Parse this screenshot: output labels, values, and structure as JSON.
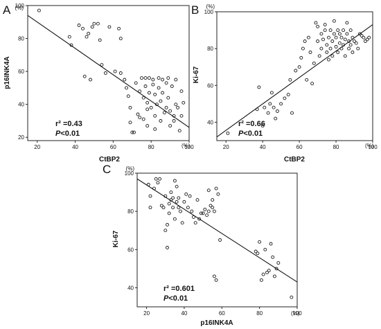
{
  "chart_data": [
    {
      "type": "scatter",
      "panel": "A",
      "xlabel": "CtBP2",
      "ylabel": "p16INK4A",
      "x_unit": "(%)",
      "y_unit": "(%)",
      "xlim": [
        15,
        100
      ],
      "ylim": [
        18,
        100
      ],
      "x_ticks": [
        "20",
        "40",
        "60",
        "80",
        "100"
      ],
      "y_ticks": [
        "20",
        "40",
        "60",
        "80",
        "100"
      ],
      "stat_r2": "r² =0.43",
      "stat_p_italic": "P",
      "stat_p_rest": "<0.01",
      "fit_line": [
        [
          15,
          94
        ],
        [
          100,
          26
        ]
      ],
      "points": [
        [
          21,
          97
        ],
        [
          37,
          81
        ],
        [
          38,
          76
        ],
        [
          45,
          57
        ],
        [
          42,
          88
        ],
        [
          44,
          86
        ],
        [
          46,
          81
        ],
        [
          47,
          83
        ],
        [
          48,
          55
        ],
        [
          49,
          87
        ],
        [
          50,
          89
        ],
        [
          52,
          89
        ],
        [
          53,
          79
        ],
        [
          54,
          64
        ],
        [
          56,
          59
        ],
        [
          58,
          87
        ],
        [
          61,
          60
        ],
        [
          64,
          59
        ],
        [
          63,
          86
        ],
        [
          64,
          80
        ],
        [
          66,
          55
        ],
        [
          67,
          50
        ],
        [
          68,
          45
        ],
        [
          69,
          38
        ],
        [
          69,
          29
        ],
        [
          70,
          23
        ],
        [
          71,
          23
        ],
        [
          72,
          53
        ],
        [
          73,
          34
        ],
        [
          74,
          32
        ],
        [
          74,
          48
        ],
        [
          75,
          56
        ],
        [
          76,
          31
        ],
        [
          76,
          44
        ],
        [
          77,
          51
        ],
        [
          77,
          56
        ],
        [
          78,
          27
        ],
        [
          78,
          41
        ],
        [
          78,
          37
        ],
        [
          79,
          47
        ],
        [
          79,
          56
        ],
        [
          80,
          38
        ],
        [
          81,
          52
        ],
        [
          81,
          55
        ],
        [
          82,
          25
        ],
        [
          82,
          33
        ],
        [
          82,
          46
        ],
        [
          83,
          40
        ],
        [
          84,
          56
        ],
        [
          84,
          50
        ],
        [
          85,
          30
        ],
        [
          85,
          42
        ],
        [
          86,
          55
        ],
        [
          86,
          47
        ],
        [
          87,
          35
        ],
        [
          88,
          53
        ],
        [
          88,
          38
        ],
        [
          89,
          44
        ],
        [
          89,
          56
        ],
        [
          90,
          36
        ],
        [
          90,
          27
        ],
        [
          91,
          51
        ],
        [
          92,
          33
        ],
        [
          92,
          30
        ],
        [
          93,
          40
        ],
        [
          93,
          55
        ],
        [
          94,
          38
        ],
        [
          95,
          24
        ],
        [
          96,
          33
        ],
        [
          96,
          48
        ],
        [
          97,
          41
        ]
      ]
    },
    {
      "type": "scatter",
      "panel": "B",
      "xlabel": "CtBP2",
      "ylabel": "Ki-67",
      "x_unit": "(%)",
      "y_unit": "(%)",
      "xlim": [
        15,
        100
      ],
      "ylim": [
        30,
        100
      ],
      "x_ticks": [
        "20",
        "40",
        "60",
        "80",
        "100"
      ],
      "y_ticks": [
        "40",
        "60",
        "80",
        "100"
      ],
      "stat_r2": "r² =0.66",
      "stat_p_italic": "P",
      "stat_p_rest": "<0.01",
      "fit_line": [
        [
          15,
          32
        ],
        [
          100,
          93
        ]
      ],
      "points": [
        [
          21,
          34
        ],
        [
          37,
          47
        ],
        [
          38,
          59
        ],
        [
          40,
          38
        ],
        [
          41,
          48
        ],
        [
          43,
          45
        ],
        [
          44,
          50
        ],
        [
          45,
          56
        ],
        [
          46,
          48
        ],
        [
          47,
          42
        ],
        [
          48,
          46
        ],
        [
          50,
          50
        ],
        [
          52,
          53
        ],
        [
          54,
          55
        ],
        [
          55,
          63
        ],
        [
          56,
          45
        ],
        [
          58,
          68
        ],
        [
          60,
          70
        ],
        [
          61,
          75
        ],
        [
          62,
          80
        ],
        [
          63,
          84
        ],
        [
          64,
          63
        ],
        [
          65,
          86
        ],
        [
          66,
          78
        ],
        [
          67,
          61
        ],
        [
          68,
          72
        ],
        [
          69,
          94
        ],
        [
          70,
          84
        ],
        [
          70,
          92
        ],
        [
          71,
          76
        ],
        [
          72,
          88
        ],
        [
          72,
          80
        ],
        [
          73,
          85
        ],
        [
          74,
          90
        ],
        [
          74,
          93
        ],
        [
          75,
          78
        ],
        [
          75,
          82
        ],
        [
          76,
          86
        ],
        [
          76,
          74
        ],
        [
          77,
          80
        ],
        [
          77,
          90
        ],
        [
          78,
          84
        ],
        [
          78,
          76
        ],
        [
          79,
          88
        ],
        [
          79,
          95
        ],
        [
          80,
          81
        ],
        [
          80,
          86
        ],
        [
          81,
          78
        ],
        [
          81,
          90
        ],
        [
          82,
          83
        ],
        [
          82,
          88
        ],
        [
          83,
          80
        ],
        [
          83,
          86
        ],
        [
          84,
          82
        ],
        [
          84,
          90
        ],
        [
          85,
          85
        ],
        [
          85,
          76
        ],
        [
          86,
          88
        ],
        [
          86,
          94
        ],
        [
          87,
          80
        ],
        [
          87,
          84
        ],
        [
          88,
          82
        ],
        [
          88,
          90
        ],
        [
          89,
          86
        ],
        [
          89,
          78
        ],
        [
          90,
          84
        ],
        [
          91,
          83
        ],
        [
          92,
          80
        ],
        [
          93,
          88
        ],
        [
          94,
          87
        ],
        [
          95,
          86
        ],
        [
          96,
          84
        ],
        [
          97,
          85
        ],
        [
          98,
          86
        ]
      ]
    },
    {
      "type": "scatter",
      "panel": "C",
      "xlabel": "p16INK4A",
      "ylabel": "Ki-67",
      "x_unit": "(%)",
      "y_unit": "(%)",
      "xlim": [
        15,
        100
      ],
      "ylim": [
        30,
        100
      ],
      "x_ticks": [
        "20",
        "40",
        "60",
        "80",
        "100"
      ],
      "y_ticks": [
        "40",
        "60",
        "80",
        "100"
      ],
      "stat_r2": "r² =0.601",
      "stat_p_italic": "P",
      "stat_p_rest": "<0.01",
      "fit_line": [
        [
          15,
          97
        ],
        [
          100,
          43
        ]
      ],
      "points": [
        [
          21,
          94
        ],
        [
          22,
          82
        ],
        [
          22,
          88
        ],
        [
          24,
          92
        ],
        [
          25,
          97
        ],
        [
          26,
          95
        ],
        [
          27,
          97
        ],
        [
          28,
          83
        ],
        [
          29,
          82
        ],
        [
          30,
          70
        ],
        [
          30,
          88
        ],
        [
          31,
          73
        ],
        [
          31,
          61
        ],
        [
          32,
          79
        ],
        [
          32,
          84
        ],
        [
          33,
          86
        ],
        [
          33,
          90
        ],
        [
          34,
          87
        ],
        [
          34,
          82
        ],
        [
          35,
          96
        ],
        [
          35,
          76
        ],
        [
          36,
          93
        ],
        [
          36,
          85
        ],
        [
          37,
          87
        ],
        [
          37,
          82
        ],
        [
          38,
          80
        ],
        [
          39,
          74
        ],
        [
          40,
          85
        ],
        [
          41,
          89
        ],
        [
          42,
          82
        ],
        [
          43,
          88
        ],
        [
          44,
          80
        ],
        [
          45,
          77
        ],
        [
          46,
          74
        ],
        [
          47,
          86
        ],
        [
          48,
          76
        ],
        [
          49,
          79
        ],
        [
          50,
          79
        ],
        [
          51,
          81
        ],
        [
          52,
          78
        ],
        [
          53,
          80
        ],
        [
          53,
          91
        ],
        [
          54,
          83
        ],
        [
          55,
          82
        ],
        [
          55,
          86
        ],
        [
          56,
          80
        ],
        [
          57,
          92
        ],
        [
          58,
          89
        ],
        [
          56,
          46
        ],
        [
          57,
          44
        ],
        [
          59,
          65
        ],
        [
          78,
          59
        ],
        [
          79,
          58
        ],
        [
          80,
          64
        ],
        [
          81,
          44
        ],
        [
          82,
          47
        ],
        [
          83,
          60
        ],
        [
          84,
          48
        ],
        [
          85,
          49
        ],
        [
          86,
          63
        ],
        [
          87,
          56
        ],
        [
          88,
          46
        ],
        [
          89,
          50
        ],
        [
          90,
          53
        ],
        [
          97,
          35
        ]
      ]
    }
  ]
}
